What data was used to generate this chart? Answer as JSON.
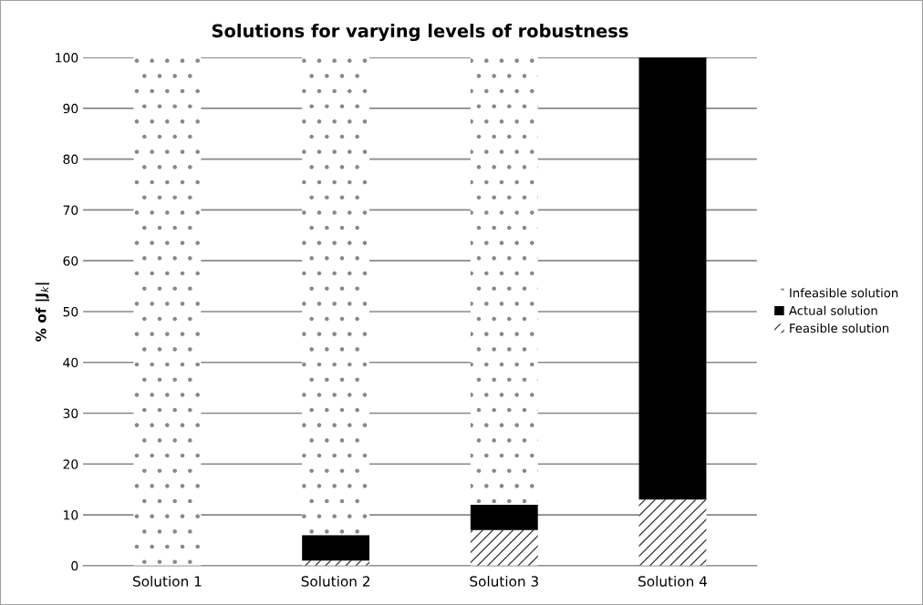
{
  "chart_data": {
    "type": "bar",
    "title": "Solutions for varying levels of robustness",
    "ylabel": "% of |J$_{k}$|",
    "categories": [
      "Solution 1",
      "Solution 2",
      "Solution 3",
      "Solution 4"
    ],
    "stacked": true,
    "series": [
      {
        "name": "Feasible solution",
        "color": "#ffffff",
        "values": [
          0,
          1,
          7,
          13
        ]
      },
      {
        "name": "Actual solution",
        "color": "#000000",
        "values": [
          0,
          5,
          5,
          87
        ]
      },
      {
        "name": "Infeasible solution",
        "color": "#ffffff",
        "values": [
          100,
          94,
          88,
          0
        ]
      }
    ],
    "ylim": [
      0,
      100
    ],
    "yticks": [
      0,
      10,
      20,
      30,
      40,
      50,
      60,
      70,
      80,
      90,
      100
    ],
    "grid": "y",
    "legend": "right"
  }
}
